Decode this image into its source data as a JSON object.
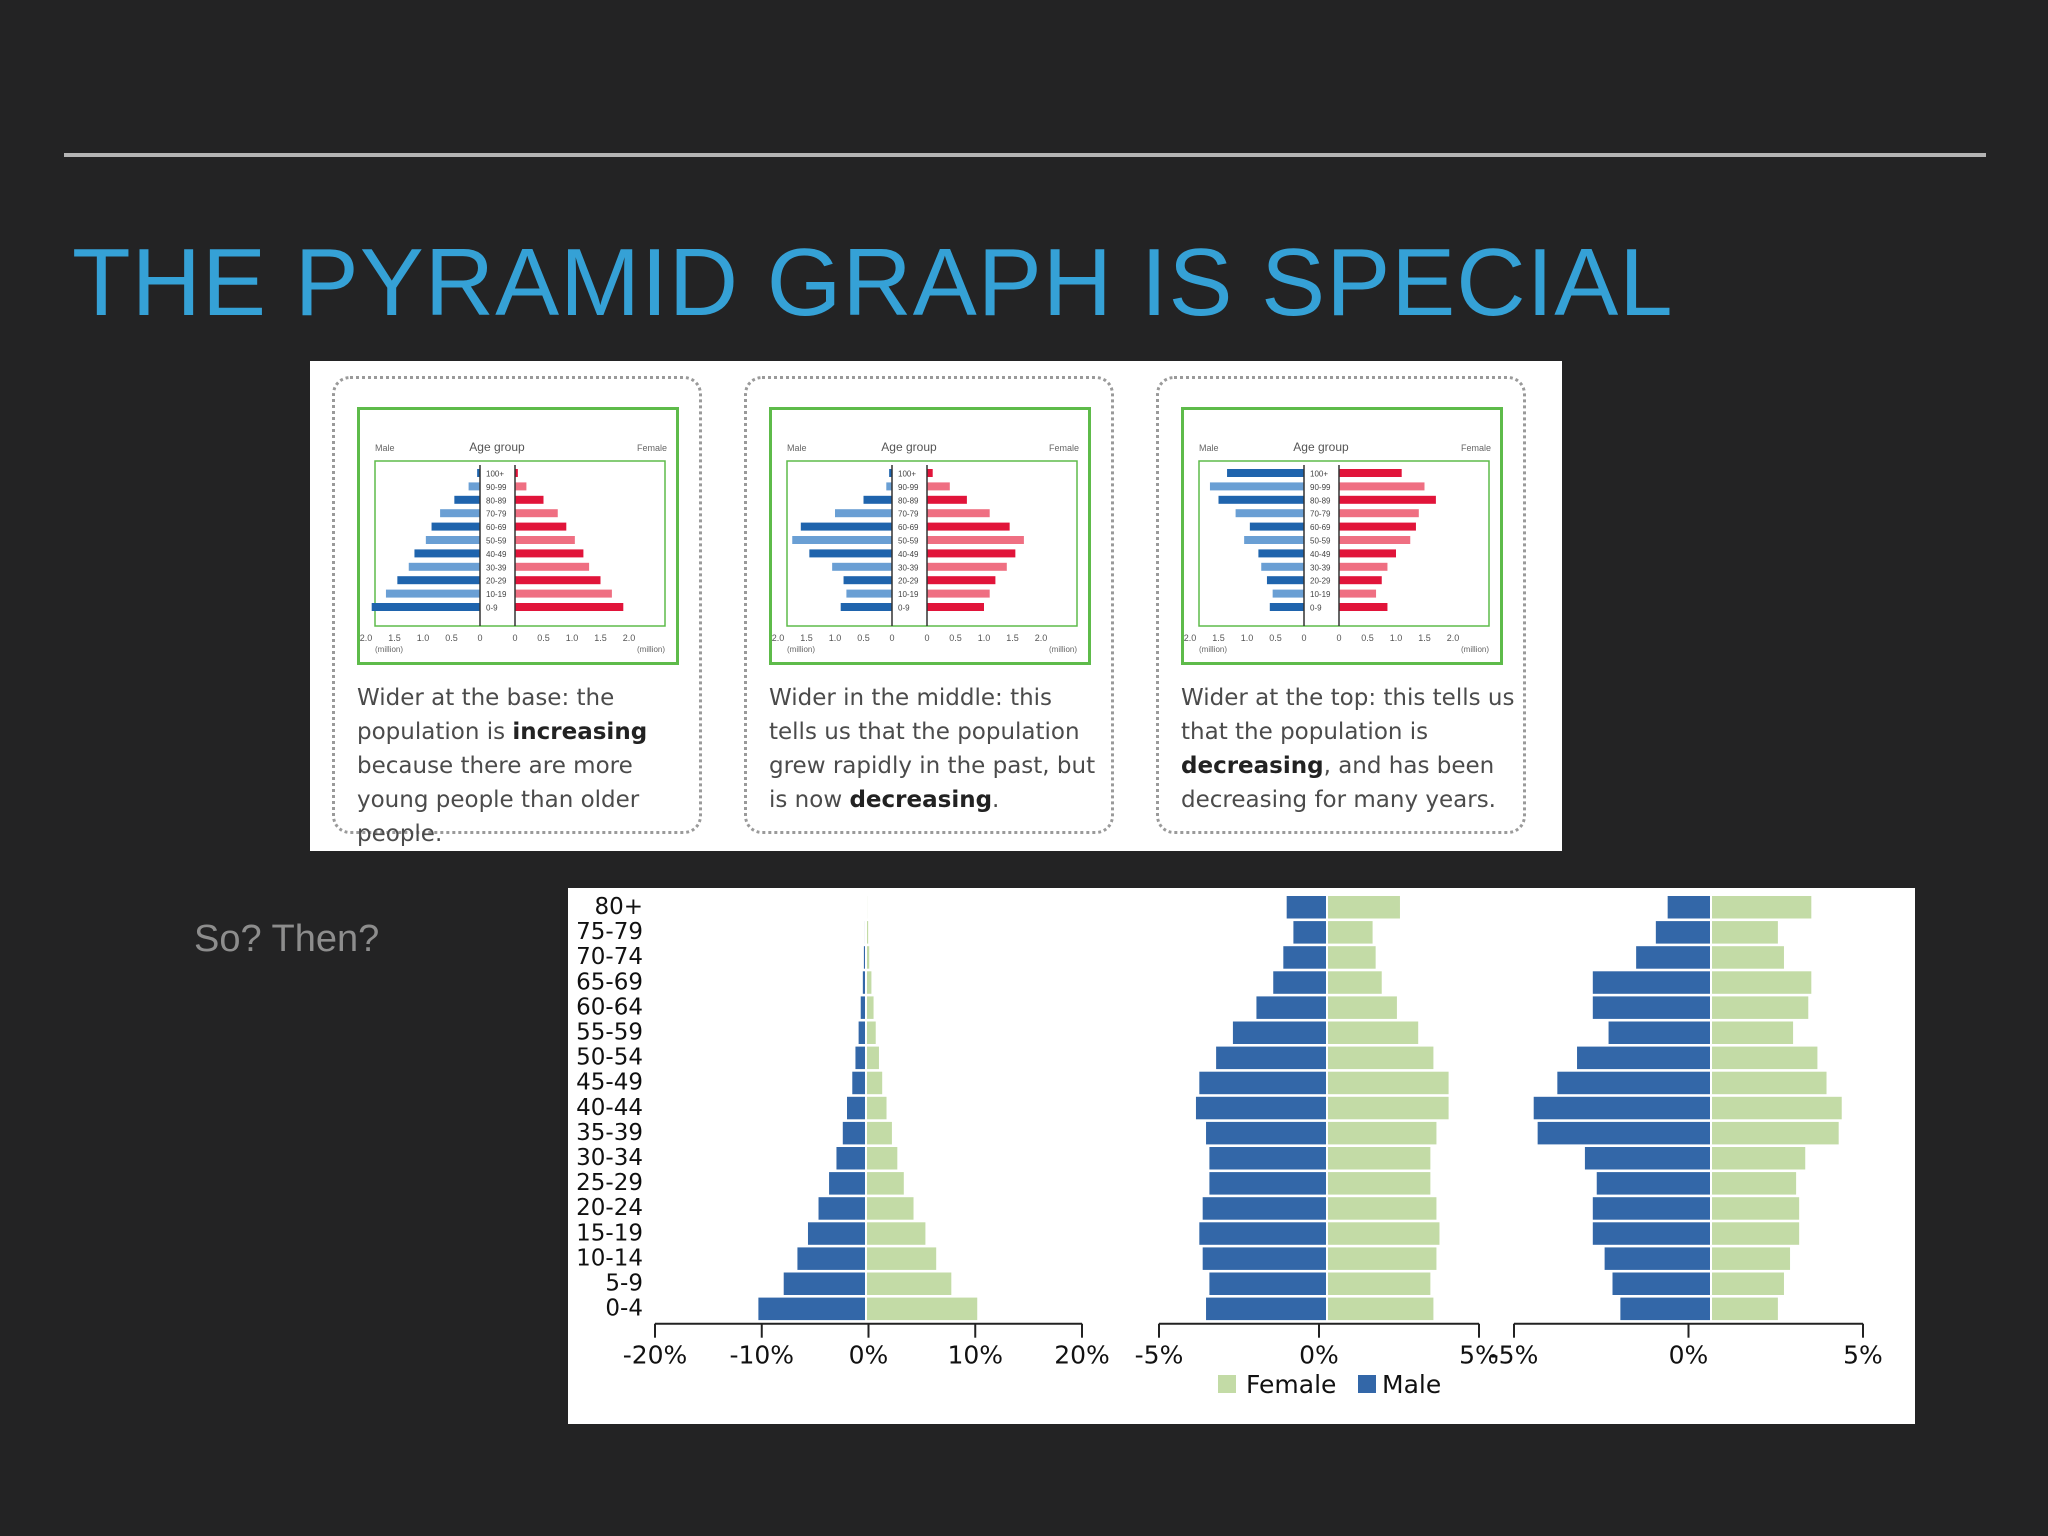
{
  "slide": {
    "title": "THE PYRAMID GRAPH IS SPECIAL",
    "side_text": "So? Then?"
  },
  "examples": [
    {
      "label_male": "Male",
      "label_age": "Age group",
      "label_female": "Female",
      "age_groups": [
        "100+",
        "90-99",
        "80-89",
        "70-79",
        "60-69",
        "50-59",
        "40-49",
        "30-39",
        "20-29",
        "10-19",
        "0-9"
      ],
      "male": [
        0.05,
        0.2,
        0.45,
        0.7,
        0.85,
        0.95,
        1.15,
        1.25,
        1.45,
        1.65,
        1.9
      ],
      "female": [
        0.05,
        0.2,
        0.5,
        0.75,
        0.9,
        1.05,
        1.2,
        1.3,
        1.5,
        1.7,
        1.9
      ],
      "ticks_left": [
        "2.0",
        "1.5",
        "1.0",
        "0.5",
        "0"
      ],
      "ticks_right": [
        "0",
        "0.5",
        "1.0",
        "1.5",
        "2.0"
      ],
      "unit": "(million)",
      "desc_a": "Wider at the base: the population is ",
      "desc_b": "increasing",
      "desc_c": " because there are more young people than older people."
    },
    {
      "label_male": "Male",
      "label_age": "Age group",
      "label_female": "Female",
      "age_groups": [
        "100+",
        "90-99",
        "80-89",
        "70-79",
        "60-69",
        "50-59",
        "40-49",
        "30-39",
        "20-29",
        "10-19",
        "0-9"
      ],
      "male": [
        0.05,
        0.1,
        0.5,
        1.0,
        1.6,
        1.75,
        1.45,
        1.05,
        0.85,
        0.8,
        0.9
      ],
      "female": [
        0.1,
        0.4,
        0.7,
        1.1,
        1.45,
        1.7,
        1.55,
        1.4,
        1.2,
        1.1,
        1.0
      ],
      "ticks_left": [
        "2.0",
        "1.5",
        "1.0",
        "0.5",
        "0"
      ],
      "ticks_right": [
        "0",
        "0.5",
        "1.0",
        "1.5",
        "2.0"
      ],
      "unit": "(million)",
      "desc_a": "Wider in the middle: this tells us that the population grew rapidly in the past, but is now ",
      "desc_b": "decreasing",
      "desc_c": "."
    },
    {
      "label_male": "Male",
      "label_age": "Age group",
      "label_female": "Female",
      "age_groups": [
        "100+",
        "90-99",
        "80-89",
        "70-79",
        "60-69",
        "50-59",
        "40-49",
        "30-39",
        "20-29",
        "10-19",
        "0-9"
      ],
      "male": [
        1.35,
        1.65,
        1.5,
        1.2,
        0.95,
        1.05,
        0.8,
        0.75,
        0.65,
        0.55,
        0.6
      ],
      "female": [
        1.1,
        1.5,
        1.7,
        1.4,
        1.35,
        1.25,
        1.0,
        0.85,
        0.75,
        0.65,
        0.85
      ],
      "ticks_left": [
        "2.0",
        "1.5",
        "1.0",
        "0.5",
        "0"
      ],
      "ticks_right": [
        "0",
        "0.5",
        "1.0",
        "1.5",
        "2.0"
      ],
      "unit": "(million)",
      "desc_a": "Wider at the top: this tells us that the population is ",
      "desc_b": "decreasing",
      "desc_c": ", and has been decreasing for many years."
    }
  ],
  "chart_data": {
    "type": "bar",
    "orientation": "horizontal-diverging",
    "categories": [
      "80+",
      "75-79",
      "70-74",
      "65-69",
      "60-64",
      "55-59",
      "50-54",
      "45-49",
      "40-44",
      "35-39",
      "30-34",
      "25-29",
      "20-24",
      "15-19",
      "10-14",
      "5-9",
      "0-4"
    ],
    "legend": [
      {
        "name": "Female",
        "color": "#c3dba6"
      },
      {
        "name": "Male",
        "color": "#3367a8"
      }
    ],
    "panels": [
      {
        "xlim": [
          -20,
          20
        ],
        "ticks": [
          "-20%",
          "-10%",
          "0%",
          "10%",
          "20%"
        ],
        "male": [
          0.0,
          0.1,
          0.2,
          0.3,
          0.5,
          0.7,
          1.0,
          1.3,
          1.8,
          2.2,
          2.8,
          3.5,
          4.5,
          5.5,
          6.5,
          7.8,
          10.2
        ],
        "female": [
          0.1,
          0.2,
          0.3,
          0.5,
          0.7,
          0.9,
          1.2,
          1.5,
          1.9,
          2.4,
          2.9,
          3.5,
          4.4,
          5.5,
          6.5,
          7.9,
          10.3
        ]
      },
      {
        "xlim": [
          -5,
          5
        ],
        "ticks": [
          "-5%",
          "0%",
          "5%"
        ],
        "male": [
          -1.2,
          -1.0,
          -1.3,
          -1.6,
          -2.1,
          -2.8,
          -3.3,
          -3.8,
          -3.9,
          -3.6,
          -3.5,
          -3.5,
          -3.7,
          -3.8,
          -3.7,
          -3.5,
          -3.6
        ],
        "female": [
          2.4,
          1.5,
          1.6,
          1.8,
          2.3,
          3.0,
          3.5,
          4.0,
          4.0,
          3.6,
          3.4,
          3.4,
          3.6,
          3.7,
          3.6,
          3.4,
          3.5
        ]
      },
      {
        "xlim": [
          -5,
          5
        ],
        "ticks": [
          "-5%",
          "0%",
          "5%"
        ],
        "male": [
          -1.1,
          -1.4,
          -1.9,
          -3.0,
          -3.0,
          -2.6,
          -3.4,
          -3.9,
          -4.5,
          -4.4,
          -3.2,
          -2.9,
          -3.0,
          -3.0,
          -2.7,
          -2.5,
          -2.3
        ],
        "female": [
          3.3,
          2.2,
          2.4,
          3.3,
          3.2,
          2.7,
          3.5,
          3.8,
          4.3,
          4.2,
          3.1,
          2.8,
          2.9,
          2.9,
          2.6,
          2.4,
          2.2
        ]
      }
    ]
  }
}
